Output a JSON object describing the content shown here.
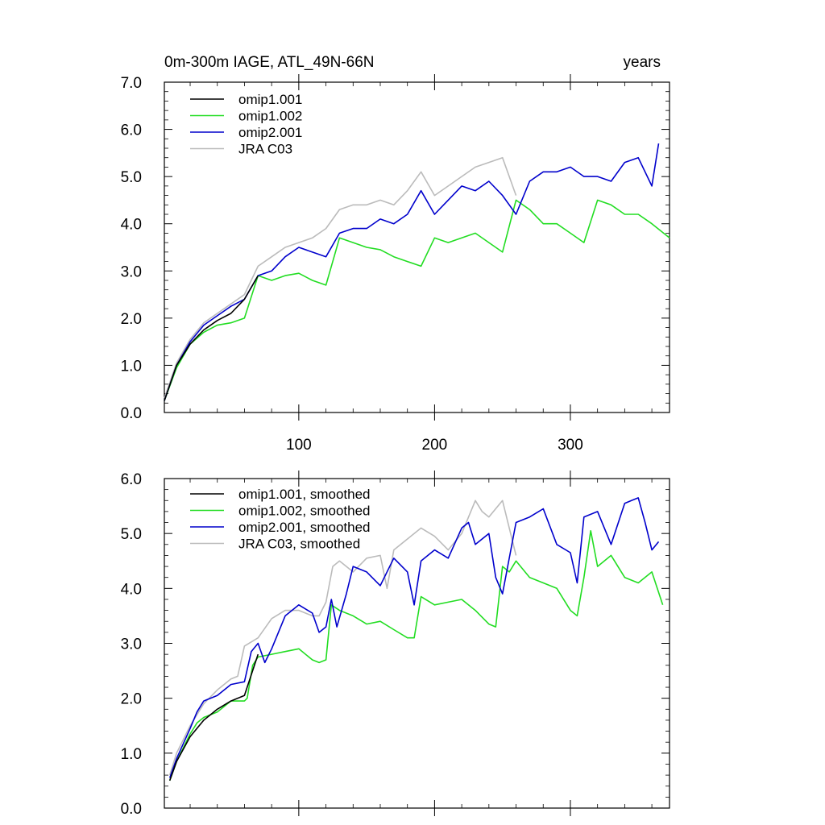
{
  "chart_data": [
    {
      "type": "line",
      "title": "0m-300m IAGE, ATL_49N-66N",
      "title_right": "years",
      "xlim": [
        1,
        373
      ],
      "ylim": [
        0,
        7
      ],
      "yticks": [
        "0.0",
        "1.0",
        "2.0",
        "3.0",
        "4.0",
        "5.0",
        "6.0",
        "7.0"
      ],
      "xticks": [
        "100",
        "200",
        "300"
      ],
      "legend_position": "top-left",
      "colors": {
        "omip1.001": "#000000",
        "omip1.002": "#22dd22",
        "omip2.001": "#0000cc",
        "JRA C03": "#bbbbbb"
      },
      "series": [
        {
          "name": "omip1.001",
          "x": [
            1,
            10,
            20,
            30,
            40,
            50,
            60,
            70
          ],
          "y": [
            0.25,
            1.0,
            1.45,
            1.75,
            1.95,
            2.1,
            2.4,
            2.9
          ]
        },
        {
          "name": "omip1.002",
          "x": [
            1,
            10,
            20,
            30,
            40,
            50,
            60,
            70,
            80,
            90,
            100,
            110,
            120,
            130,
            140,
            150,
            160,
            170,
            180,
            190,
            200,
            210,
            220,
            230,
            240,
            250,
            260,
            270,
            280,
            290,
            300,
            310,
            320,
            330,
            340,
            350,
            360,
            373
          ],
          "y": [
            0.25,
            0.95,
            1.45,
            1.7,
            1.85,
            1.9,
            2.0,
            2.9,
            2.8,
            2.9,
            2.95,
            2.8,
            2.7,
            3.7,
            3.6,
            3.5,
            3.45,
            3.3,
            3.2,
            3.1,
            3.7,
            3.6,
            3.7,
            3.8,
            3.6,
            3.4,
            4.5,
            4.3,
            4.0,
            4.0,
            3.8,
            3.6,
            4.5,
            4.4,
            4.2,
            4.2,
            4.0,
            3.7
          ]
        },
        {
          "name": "omip2.001",
          "x": [
            1,
            10,
            20,
            30,
            40,
            50,
            60,
            70,
            80,
            90,
            100,
            110,
            120,
            130,
            140,
            150,
            160,
            170,
            180,
            190,
            200,
            210,
            220,
            230,
            240,
            250,
            260,
            270,
            280,
            290,
            300,
            310,
            320,
            330,
            340,
            350,
            360,
            365
          ],
          "y": [
            0.25,
            1.0,
            1.5,
            1.85,
            2.05,
            2.25,
            2.4,
            2.9,
            3.0,
            3.3,
            3.5,
            3.4,
            3.3,
            3.8,
            3.9,
            3.9,
            4.1,
            4.0,
            4.2,
            4.7,
            4.2,
            4.5,
            4.8,
            4.7,
            4.9,
            4.6,
            4.2,
            4.9,
            5.1,
            5.1,
            5.2,
            5.0,
            5.0,
            4.9,
            5.3,
            5.4,
            4.8,
            5.7
          ]
        },
        {
          "name": "JRA C03",
          "x": [
            1,
            10,
            20,
            30,
            40,
            50,
            60,
            70,
            80,
            90,
            100,
            110,
            120,
            130,
            140,
            150,
            160,
            170,
            180,
            190,
            200,
            210,
            220,
            230,
            240,
            250,
            260
          ],
          "y": [
            0.3,
            1.05,
            1.55,
            1.9,
            2.1,
            2.3,
            2.5,
            3.1,
            3.3,
            3.5,
            3.6,
            3.7,
            3.9,
            4.3,
            4.4,
            4.4,
            4.5,
            4.4,
            4.7,
            5.1,
            4.6,
            4.8,
            5.0,
            5.2,
            5.3,
            5.4,
            4.6
          ]
        }
      ]
    },
    {
      "type": "line",
      "title": "",
      "xlim": [
        1,
        373
      ],
      "ylim": [
        0,
        6
      ],
      "yticks": [
        "0.0",
        "1.0",
        "2.0",
        "3.0",
        "4.0",
        "5.0",
        "6.0"
      ],
      "xticks": [],
      "legend_position": "top-left",
      "colors": {
        "omip1.001, smoothed": "#000000",
        "omip1.002, smoothed": "#22dd22",
        "omip2.001, smoothed": "#0000cc",
        "JRA C03, smoothed": "#bbbbbb"
      },
      "series": [
        {
          "name": "omip1.001, smoothed",
          "x": [
            5,
            10,
            20,
            30,
            40,
            50,
            60,
            70
          ],
          "y": [
            0.5,
            0.85,
            1.3,
            1.6,
            1.8,
            1.95,
            2.05,
            2.8
          ]
        },
        {
          "name": "omip1.002, smoothed",
          "x": [
            5,
            10,
            20,
            25,
            30,
            40,
            50,
            60,
            62,
            66,
            70,
            80,
            90,
            100,
            110,
            115,
            120,
            124,
            130,
            140,
            150,
            160,
            170,
            180,
            185,
            190,
            200,
            210,
            220,
            230,
            240,
            245,
            250,
            255,
            260,
            270,
            280,
            290,
            300,
            305,
            310,
            315,
            320,
            330,
            340,
            350,
            360,
            368
          ],
          "y": [
            0.5,
            0.85,
            1.35,
            1.55,
            1.65,
            1.75,
            1.95,
            1.95,
            2.0,
            2.6,
            2.75,
            2.8,
            2.85,
            2.9,
            2.7,
            2.65,
            2.7,
            3.7,
            3.6,
            3.5,
            3.35,
            3.4,
            3.25,
            3.1,
            3.1,
            3.85,
            3.7,
            3.75,
            3.8,
            3.6,
            3.35,
            3.3,
            4.4,
            4.3,
            4.5,
            4.2,
            4.1,
            4.0,
            3.6,
            3.5,
            4.2,
            5.05,
            4.4,
            4.6,
            4.2,
            4.1,
            4.3,
            3.7
          ]
        },
        {
          "name": "omip2.001, smoothed",
          "x": [
            5,
            10,
            20,
            25,
            30,
            40,
            50,
            60,
            65,
            70,
            75,
            80,
            90,
            100,
            110,
            115,
            120,
            124,
            128,
            135,
            140,
            150,
            160,
            170,
            180,
            185,
            190,
            200,
            210,
            220,
            225,
            230,
            240,
            245,
            250,
            260,
            270,
            280,
            290,
            300,
            305,
            310,
            320,
            330,
            340,
            345,
            350,
            355,
            360,
            365
          ],
          "y": [
            0.55,
            0.9,
            1.45,
            1.75,
            1.95,
            2.05,
            2.25,
            2.3,
            2.85,
            3.0,
            2.65,
            2.9,
            3.5,
            3.7,
            3.55,
            3.2,
            3.3,
            3.8,
            3.3,
            3.9,
            4.4,
            4.3,
            4.05,
            4.55,
            4.3,
            3.7,
            4.5,
            4.7,
            4.55,
            5.1,
            5.2,
            4.8,
            5.0,
            4.2,
            3.9,
            5.2,
            5.3,
            5.45,
            4.8,
            4.65,
            4.1,
            5.3,
            5.4,
            4.8,
            5.55,
            5.6,
            5.65,
            5.2,
            4.7,
            4.85
          ]
        },
        {
          "name": "JRA C03, smoothed",
          "x": [
            5,
            10,
            20,
            30,
            40,
            50,
            55,
            60,
            70,
            80,
            90,
            100,
            110,
            115,
            120,
            125,
            130,
            140,
            150,
            160,
            165,
            170,
            180,
            190,
            200,
            210,
            220,
            230,
            235,
            240,
            250,
            260
          ],
          "y": [
            0.6,
            1.0,
            1.5,
            1.9,
            2.15,
            2.35,
            2.4,
            2.95,
            3.1,
            3.45,
            3.6,
            3.6,
            3.5,
            3.5,
            3.75,
            4.4,
            4.5,
            4.3,
            4.55,
            4.6,
            4.0,
            4.7,
            4.9,
            5.1,
            4.95,
            4.7,
            5.0,
            5.6,
            5.4,
            5.3,
            5.6,
            4.6
          ]
        }
      ]
    }
  ]
}
